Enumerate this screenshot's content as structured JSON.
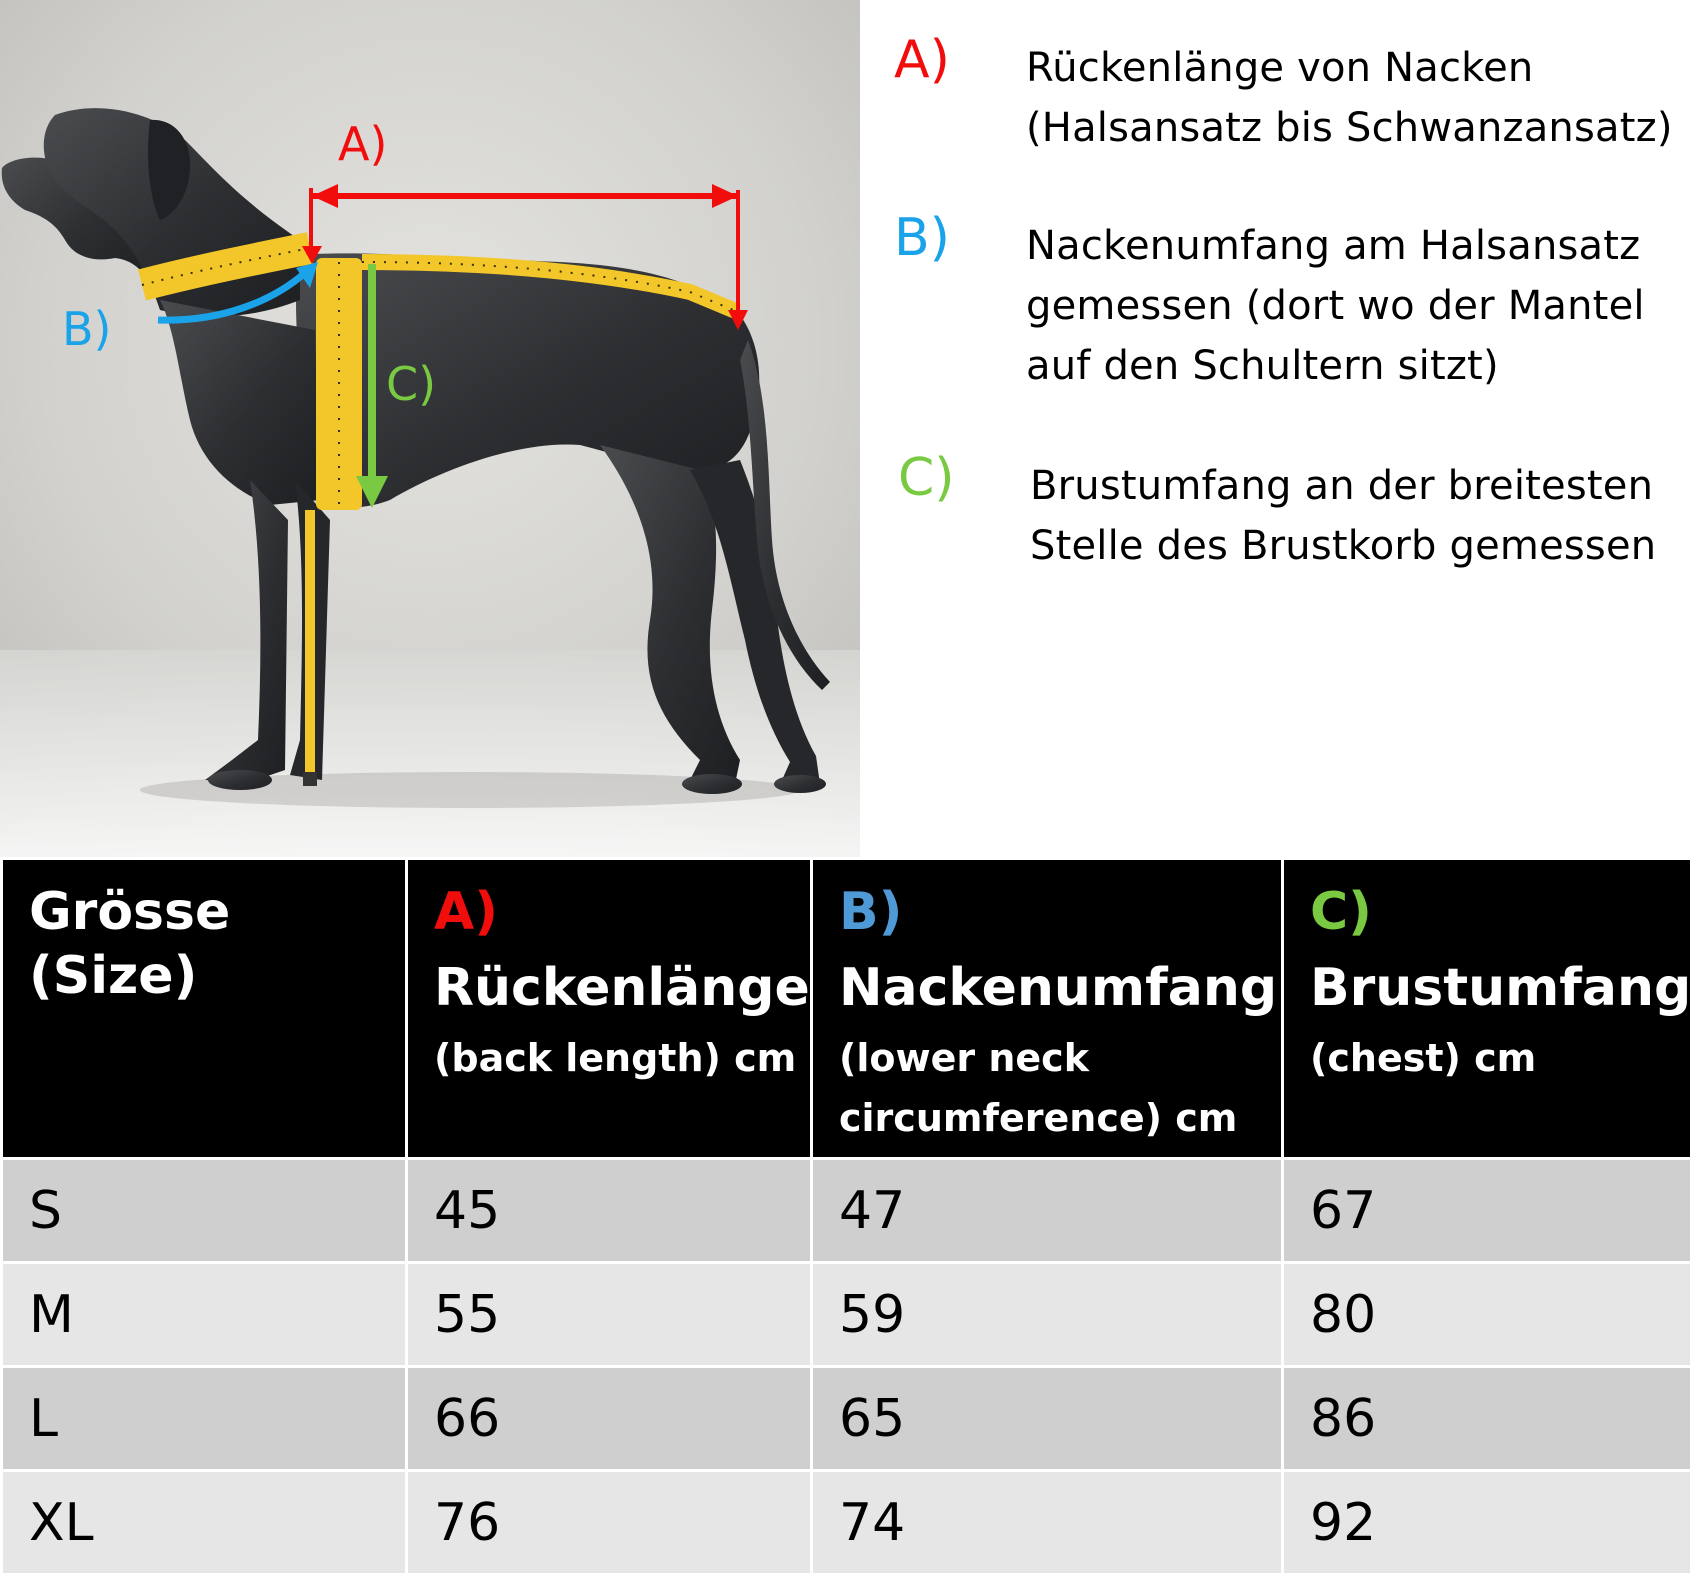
{
  "colors": {
    "a": "#f20d0d",
    "b": "#1aa3e8",
    "c": "#7ac943",
    "tape": "#f3c72a"
  },
  "figure": {
    "labels": {
      "a": "A)",
      "b": "B)",
      "c": "C)"
    },
    "icons": [
      "dog-illustration",
      "measuring-tape",
      "arrow"
    ]
  },
  "legend": [
    {
      "letter": "A)",
      "text": "Rückenlänge von Nacken\n(Halsansatz bis Schwanzansatz)"
    },
    {
      "letter": "B)",
      "text": "Nackenumfang am Halsansatz\ngemessen (dort wo der Mantel\nauf den Schultern sitzt)"
    },
    {
      "letter": "C)",
      "text": "Brustumfang an der breitesten\nStelle des Brustkorb gemessen"
    }
  ],
  "table": {
    "header": {
      "size": "Grösse (Size)",
      "a": {
        "letter": "A)",
        "title": "Rückenlänge",
        "sub": "(back length) cm"
      },
      "b": {
        "letter": "B)",
        "title": "Nackenumfang",
        "sub": "(lower neck\ncircumference) cm"
      },
      "c": {
        "letter": "C)",
        "title": "Brustumfang",
        "sub": "(chest) cm"
      }
    },
    "rows": [
      {
        "size": "S",
        "a": "45",
        "b": "47",
        "c": "67"
      },
      {
        "size": "M",
        "a": "55",
        "b": "59",
        "c": "80"
      },
      {
        "size": "L",
        "a": "66",
        "b": "65",
        "c": "86"
      },
      {
        "size": "XL",
        "a": "76",
        "b": "74",
        "c": "92"
      }
    ]
  }
}
